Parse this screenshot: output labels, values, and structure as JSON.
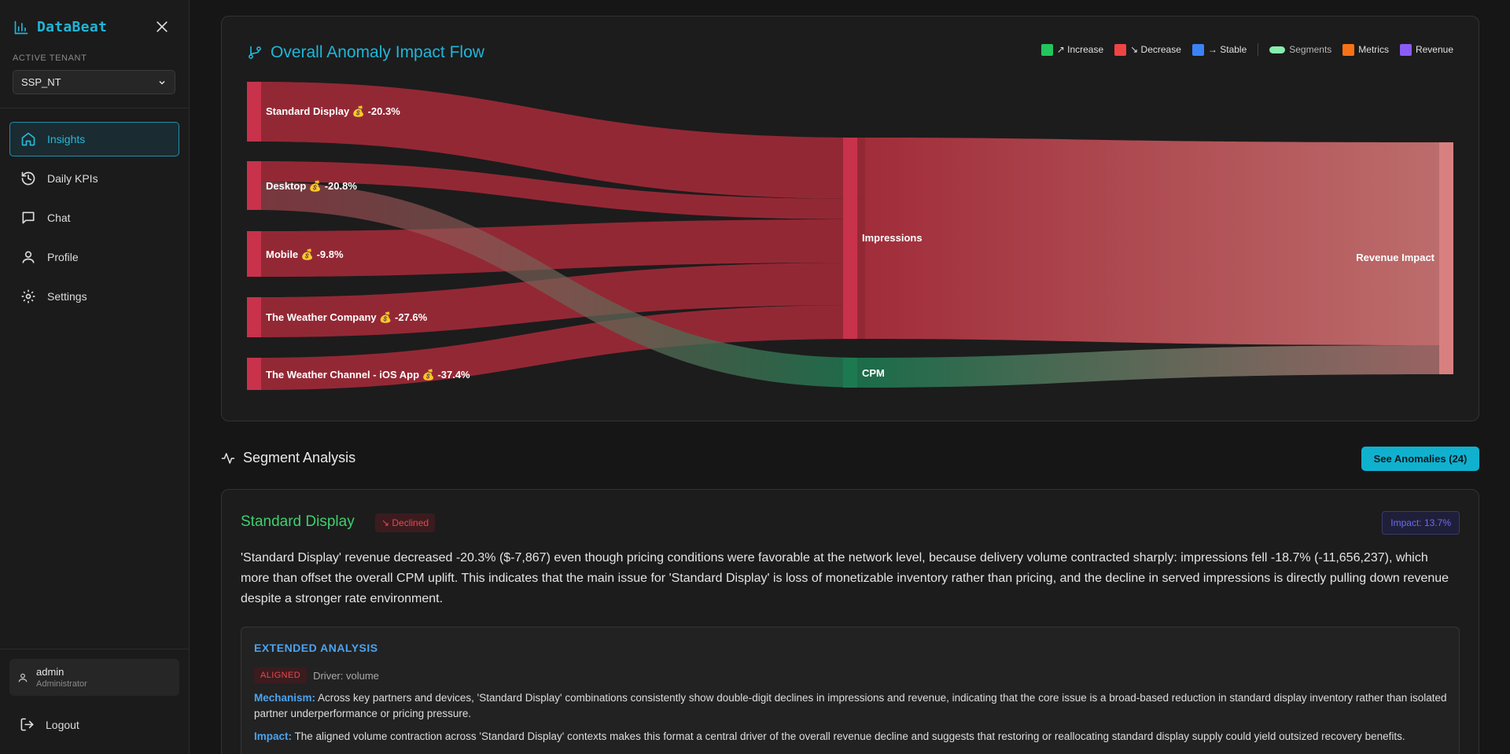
{
  "sidebar": {
    "brand": "DataBeat",
    "tenant_label": "ACTIVE TENANT",
    "tenant_value": "SSP_NT",
    "nav": [
      {
        "label": "Insights",
        "icon": "home-icon",
        "active": true
      },
      {
        "label": "Daily KPIs",
        "icon": "history-icon",
        "active": false
      },
      {
        "label": "Chat",
        "icon": "chat-icon",
        "active": false
      },
      {
        "label": "Profile",
        "icon": "user-icon",
        "active": false
      },
      {
        "label": "Settings",
        "icon": "gear-icon",
        "active": false
      }
    ],
    "user": {
      "name": "admin",
      "role": "Administrator"
    },
    "logout": "Logout"
  },
  "flow": {
    "title": "Overall Anomaly Impact Flow",
    "legend": [
      {
        "label": "↗ Increase",
        "color": "#22c55e"
      },
      {
        "label": "↘ Decrease",
        "color": "#ef4444"
      },
      {
        "label": "→ Stable",
        "color": "#3b82f6"
      },
      {
        "label": "Segments",
        "color": "#86efac"
      },
      {
        "label": "Metrics",
        "color": "#f97316"
      },
      {
        "label": "Revenue",
        "color": "#8b5cf6"
      }
    ],
    "nodes": {
      "sources": [
        "Standard Display 💰 -20.3%",
        "Desktop 💰 -20.8%",
        "Mobile 💰 -9.8%",
        "The Weather Company 💰 -27.6%",
        "The Weather Channel - iOS App 💰 -37.4%"
      ],
      "metrics": [
        "Impressions",
        "CPM"
      ],
      "target": "Revenue Impact"
    }
  },
  "segments": {
    "heading": "Segment Analysis",
    "anomalies_button": "See Anomalies (24)",
    "card": {
      "name": "Standard Display",
      "status": "↘ Declined",
      "impact": "Impact: 13.7%",
      "summary": "'Standard Display' revenue decreased -20.3% ($-7,867) even though pricing conditions were favorable at the network level, because delivery volume contracted sharply: impressions fell -18.7% (-11,656,237), which more than offset the overall CPM uplift. This indicates that the main issue for 'Standard Display' is loss of monetizable inventory rather than pricing, and the decline in served impressions is directly pulling down revenue despite a stronger rate environment.",
      "extended": {
        "title": "EXTENDED ANALYSIS",
        "badge": "ALIGNED",
        "driver": "Driver: volume",
        "mechanism_label": "Mechanism:",
        "mechanism": "Across key partners and devices, 'Standard Display' combinations consistently show double-digit declines in impressions and revenue, indicating that the core issue is a broad-based reduction in standard display inventory rather than isolated partner underperformance or pricing pressure.",
        "impact_label": "Impact:",
        "impact": "The aligned volume contraction across 'Standard Display' contexts makes this format a central driver of the overall revenue decline and suggests that restoring or reallocating standard display supply could yield outsized recovery benefits."
      }
    }
  }
}
